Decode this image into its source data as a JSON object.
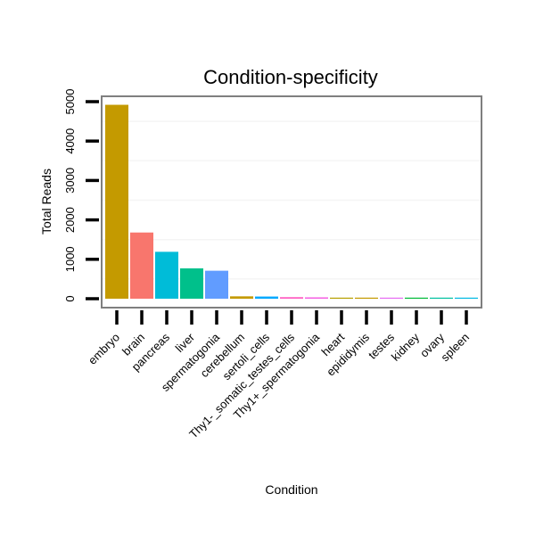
{
  "chart_data": {
    "type": "bar",
    "title": "Condition-specificity",
    "xlabel": "Condition",
    "ylabel": "Total Reads",
    "ylim": [
      0,
      5300
    ],
    "yticks": [
      0,
      1000,
      2000,
      3000,
      4000,
      5000
    ],
    "ytick_labels": [
      "0",
      "1000",
      "2000",
      "3000",
      "4000",
      "5000"
    ],
    "categories": [
      "embryo",
      "brain",
      "pancreas",
      "liver",
      "spermatogonia",
      "cerebellum",
      "sertoli_cells",
      "Thy1-_somatic_testes_cells",
      "Thy1+_spermatogonia",
      "heart",
      "epididymis",
      "testes",
      "kidney",
      "ovary",
      "spleen"
    ],
    "values": [
      4920,
      1680,
      1190,
      770,
      710,
      60,
      55,
      40,
      35,
      25,
      20,
      15,
      3,
      3,
      3
    ],
    "colors": [
      "#C49A00",
      "#F8766D",
      "#00BCD8",
      "#00C08B",
      "#619CFF",
      "#C49A00",
      "#00A9FF",
      "#FF61C3",
      "#F564E3",
      "#B79F00",
      "#C49A00",
      "#E76BF3",
      "#00BA38",
      "#00C19F",
      "#00B9E3"
    ],
    "grid": true,
    "legend": "none"
  }
}
